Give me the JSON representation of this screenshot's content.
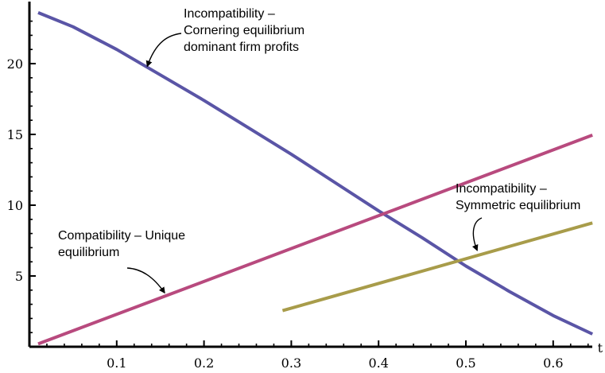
{
  "chart_data": {
    "type": "line",
    "title": "",
    "xlabel": "t",
    "ylabel": "",
    "xlim": [
      0.0,
      0.66
    ],
    "ylim": [
      0.0,
      24.0
    ],
    "grid": false,
    "legend": "none",
    "x_ticks": [
      {
        "value": 0.1,
        "label": "0.1"
      },
      {
        "value": 0.2,
        "label": "0.2"
      },
      {
        "value": 0.3,
        "label": "0.3"
      },
      {
        "value": 0.4,
        "label": "0.4"
      },
      {
        "value": 0.5,
        "label": "0.5"
      },
      {
        "value": 0.6,
        "label": "0.6"
      }
    ],
    "y_ticks": [
      {
        "value": 5,
        "label": "5"
      },
      {
        "value": 10,
        "label": "10"
      },
      {
        "value": 15,
        "label": "15"
      },
      {
        "value": 20,
        "label": "20"
      }
    ],
    "series": [
      {
        "color": "#5a55a6",
        "x": [
          0.01,
          0.05,
          0.1,
          0.15,
          0.2,
          0.25,
          0.3,
          0.35,
          0.4,
          0.45,
          0.5,
          0.55,
          0.6,
          0.645
        ],
        "y": [
          23.6,
          22.6,
          21.0,
          19.2,
          17.4,
          15.5,
          13.6,
          11.6,
          9.6,
          7.7,
          5.7,
          3.9,
          2.2,
          0.9
        ]
      },
      {
        "color": "#b84a7e",
        "x": [
          0.01,
          0.645
        ],
        "y": [
          0.2,
          14.95
        ]
      },
      {
        "color": "#a89c4a",
        "x": [
          0.29,
          0.645
        ],
        "y": [
          2.55,
          8.75
        ]
      }
    ],
    "annotations": [
      {
        "lines": [
          "Incompatibility –",
          "Cornering equilibrium",
          "dominant firm profits"
        ],
        "arrow_to": [
          0.135,
          19.8
        ]
      },
      {
        "lines": [
          "Incompatibility –",
          "Symmetric equilibrium"
        ],
        "arrow_to": [
          0.513,
          6.8
        ]
      },
      {
        "lines": [
          "Compatibility – Unique",
          "equilibrium"
        ],
        "arrow_to": [
          0.155,
          3.8
        ]
      }
    ]
  }
}
